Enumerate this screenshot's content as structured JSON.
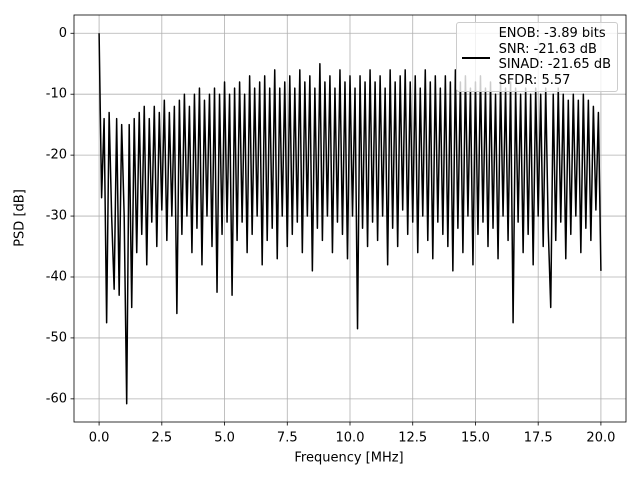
{
  "chart_data": {
    "type": "line",
    "xlabel": "Frequency [MHz]",
    "ylabel": "PSD [dB]",
    "xlim": [
      -1,
      21
    ],
    "ylim": [
      -63.8,
      3
    ],
    "xticks": [
      {
        "value": 0,
        "label": "0.0"
      },
      2.5,
      {
        "value": 5,
        "label": "5.0"
      },
      7.5,
      {
        "value": 10,
        "label": "10.0"
      },
      12.5,
      {
        "value": 15,
        "label": "15.0"
      },
      17.5,
      {
        "value": 20,
        "label": "20.0"
      }
    ],
    "yticks": [
      0,
      -10,
      -20,
      -30,
      -40,
      -50,
      -60
    ],
    "grid": true,
    "legend": "upper right",
    "x": [
      0,
      0.1,
      0.2,
      0.3,
      0.4,
      0.5,
      0.6,
      0.7,
      0.8,
      0.9,
      1,
      1.1,
      1.2,
      1.3,
      1.4,
      1.5,
      1.6,
      1.7,
      1.8,
      1.9,
      2,
      2.1,
      2.2,
      2.3,
      2.4,
      2.5,
      2.6,
      2.7,
      2.8,
      2.9,
      3,
      3.1,
      3.2,
      3.3,
      3.4,
      3.5,
      3.6,
      3.7,
      3.8,
      3.9,
      4,
      4.1,
      4.2,
      4.3,
      4.4,
      4.5,
      4.6,
      4.7,
      4.8,
      4.9,
      5,
      5.1,
      5.2,
      5.3,
      5.4,
      5.5,
      5.6,
      5.7,
      5.8,
      5.9,
      6,
      6.1,
      6.2,
      6.3,
      6.4,
      6.5,
      6.6,
      6.7,
      6.8,
      6.9,
      7,
      7.1,
      7.2,
      7.3,
      7.4,
      7.5,
      7.6,
      7.7,
      7.8,
      7.9,
      8,
      8.1,
      8.2,
      8.3,
      8.4,
      8.5,
      8.6,
      8.7,
      8.8,
      8.9,
      9,
      9.1,
      9.2,
      9.3,
      9.4,
      9.5,
      9.6,
      9.7,
      9.8,
      9.9,
      10,
      10.1,
      10.2,
      10.3,
      10.4,
      10.5,
      10.6,
      10.7,
      10.8,
      10.9,
      11,
      11.1,
      11.2,
      11.3,
      11.4,
      11.5,
      11.6,
      11.7,
      11.8,
      11.9,
      12,
      12.1,
      12.2,
      12.3,
      12.4,
      12.5,
      12.6,
      12.7,
      12.8,
      12.9,
      13,
      13.1,
      13.2,
      13.3,
      13.4,
      13.5,
      13.6,
      13.7,
      13.8,
      13.9,
      14,
      14.1,
      14.2,
      14.3,
      14.4,
      14.5,
      14.6,
      14.7,
      14.8,
      14.9,
      15,
      15.1,
      15.2,
      15.3,
      15.4,
      15.5,
      15.6,
      15.7,
      15.8,
      15.9,
      16,
      16.1,
      16.2,
      16.3,
      16.4,
      16.5,
      16.6,
      16.7,
      16.8,
      16.9,
      17,
      17.1,
      17.2,
      17.3,
      17.4,
      17.5,
      17.6,
      17.7,
      17.8,
      17.9,
      18,
      18.1,
      18.2,
      18.3,
      18.4,
      18.5,
      18.6,
      18.7,
      18.8,
      18.9,
      19,
      19.1,
      19.2,
      19.3,
      19.4,
      19.5,
      19.6,
      19.7,
      19.8,
      19.9,
      20
    ],
    "series": [
      {
        "name": "ENOB: -3.89 bits\nSNR: -21.63 dB\nSINAD: -21.65 dB\nSFDR: 5.57",
        "color": "#000000",
        "values": [
          0,
          -27,
          -14,
          -47.5,
          -13,
          -30,
          -42,
          -14,
          -43,
          -15,
          -30,
          -60.8,
          -15,
          -45,
          -14,
          -36,
          -13,
          -33,
          -12,
          -38,
          -14,
          -31,
          -12,
          -35,
          -13,
          -29,
          -11,
          -34,
          -13,
          -30,
          -12,
          -46,
          -11,
          -33,
          -10,
          -30,
          -12,
          -36,
          -10,
          -32,
          -9,
          -38,
          -11,
          -30,
          -10,
          -35,
          -9,
          -42.5,
          -10,
          -33,
          -8,
          -31,
          -10,
          -43,
          -9,
          -34,
          -8,
          -31,
          -10,
          -36,
          -7,
          -33,
          -9,
          -30,
          -8,
          -38,
          -7,
          -34,
          -9,
          -32,
          -6,
          -37,
          -9,
          -30,
          -8,
          -35,
          -7,
          -33,
          -9,
          -31,
          -6,
          -36,
          -8,
          -30,
          -7,
          -39,
          -9,
          -32,
          -5,
          -34,
          -8,
          -30,
          -7,
          -36,
          -9,
          -31,
          -6,
          -33,
          -8,
          -37,
          -7,
          -30,
          -9,
          -48.5,
          -7,
          -32,
          -8,
          -35,
          -6,
          -31,
          -8,
          -34,
          -7,
          -30,
          -9,
          -38,
          -6,
          -32,
          -8,
          -35,
          -7,
          -29,
          -6,
          -33,
          -8,
          -31,
          -7,
          -36,
          -9,
          -30,
          -6,
          -34,
          -8,
          -37,
          -7,
          -31,
          -9,
          -33,
          -7,
          -35,
          -8,
          -39,
          -6,
          -32,
          -8,
          -36,
          -7,
          -30,
          -9,
          -38,
          -8,
          -33,
          -7,
          -31,
          -9,
          -35,
          -8,
          -32,
          -10,
          -37,
          -8,
          -30,
          -9,
          -34,
          -8,
          -47.5,
          -9,
          -31,
          -10,
          -36,
          -9,
          -33,
          -10,
          -38,
          -9,
          -30,
          -10,
          -35,
          -9,
          -32,
          -45,
          -10,
          -34,
          -9,
          -31,
          -10,
          -37,
          -11,
          -33,
          -10,
          -30,
          -11,
          -36,
          -10,
          -32,
          -11,
          -34,
          -12,
          -29,
          -13,
          -39
        ]
      }
    ]
  }
}
